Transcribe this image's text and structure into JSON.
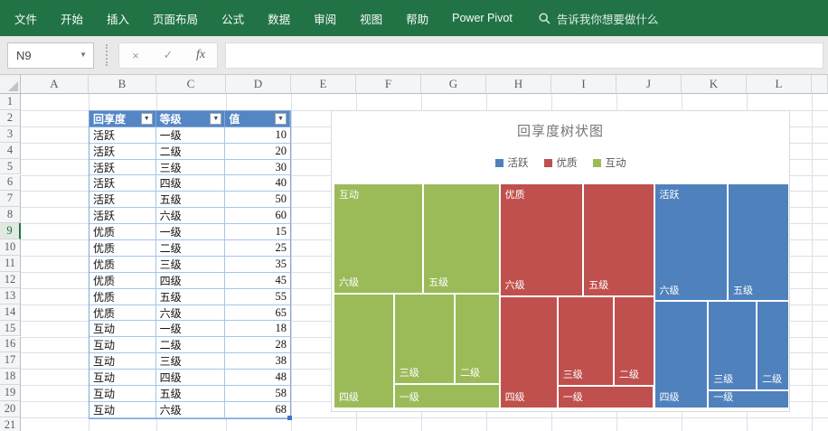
{
  "ribbon": {
    "tabs": [
      "文件",
      "开始",
      "插入",
      "页面布局",
      "公式",
      "数据",
      "审阅",
      "视图",
      "帮助",
      "Power Pivot"
    ],
    "search_placeholder": "告诉我你想要做什么",
    "bg_color": "#217346"
  },
  "formula_bar": {
    "name_box": "N9",
    "cancel_glyph": "×",
    "enter_glyph": "✓",
    "function_glyph": "fx",
    "formula_value": ""
  },
  "grid": {
    "columns": [
      "A",
      "B",
      "C",
      "D",
      "E",
      "F",
      "G",
      "H",
      "I",
      "J",
      "K",
      "L"
    ],
    "rows": [
      "1",
      "2",
      "3",
      "4",
      "5",
      "6",
      "7",
      "8",
      "9",
      "10",
      "11",
      "12",
      "13",
      "14",
      "15",
      "16",
      "17",
      "18",
      "19",
      "20",
      "21"
    ],
    "selected_row": "9"
  },
  "table": {
    "headers": [
      "回享度",
      "等级",
      "值"
    ],
    "header_bg": "#5586C4",
    "filter_glyph": "▼",
    "rows": [
      [
        "活跃",
        "一级",
        "10"
      ],
      [
        "活跃",
        "二级",
        "20"
      ],
      [
        "活跃",
        "三级",
        "30"
      ],
      [
        "活跃",
        "四级",
        "40"
      ],
      [
        "活跃",
        "五级",
        "50"
      ],
      [
        "活跃",
        "六级",
        "60"
      ],
      [
        "优质",
        "一级",
        "15"
      ],
      [
        "优质",
        "二级",
        "25"
      ],
      [
        "优质",
        "三级",
        "35"
      ],
      [
        "优质",
        "四级",
        "45"
      ],
      [
        "优质",
        "五级",
        "55"
      ],
      [
        "优质",
        "六级",
        "65"
      ],
      [
        "互动",
        "一级",
        "18"
      ],
      [
        "互动",
        "二级",
        "28"
      ],
      [
        "互动",
        "三级",
        "38"
      ],
      [
        "互动",
        "四级",
        "48"
      ],
      [
        "互动",
        "五级",
        "58"
      ],
      [
        "互动",
        "六级",
        "68"
      ]
    ]
  },
  "chart_data": {
    "type": "treemap",
    "title": "回享度树状图",
    "legend": [
      {
        "name": "活跃",
        "color": "#4F81BD"
      },
      {
        "name": "优质",
        "color": "#C0504D"
      },
      {
        "name": "互动",
        "color": "#9BBB59"
      }
    ],
    "categories": [
      "一级",
      "二级",
      "三级",
      "四级",
      "五级",
      "六级"
    ],
    "series": [
      {
        "name": "活跃",
        "color": "#4F81BD",
        "values": [
          10,
          20,
          30,
          40,
          50,
          60
        ]
      },
      {
        "name": "优质",
        "color": "#C0504D",
        "values": [
          15,
          25,
          35,
          45,
          55,
          65
        ]
      },
      {
        "name": "互动",
        "color": "#9BBB59",
        "values": [
          18,
          28,
          38,
          48,
          58,
          68
        ]
      }
    ],
    "display_order_left_to_right": [
      "互动",
      "优质",
      "活跃"
    ],
    "legend_position": "top"
  }
}
